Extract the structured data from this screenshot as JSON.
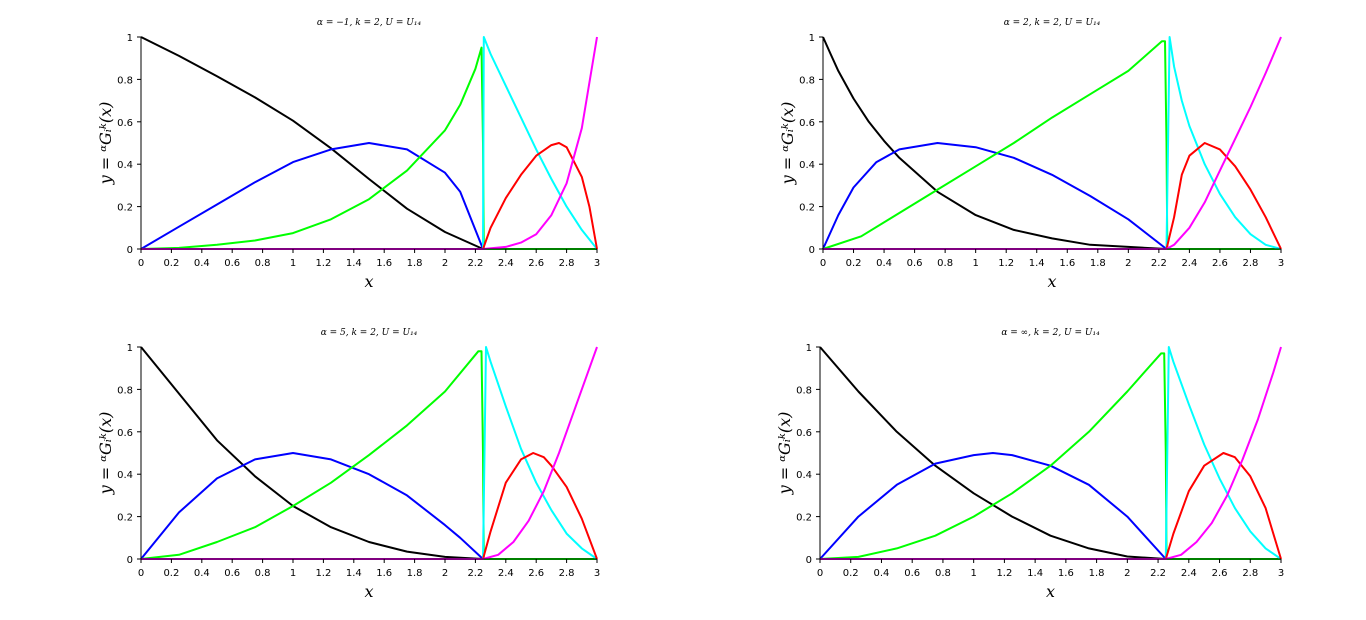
{
  "chart_data": [
    {
      "type": "line",
      "title": "α = −1, k = 2, U = U₁₄",
      "xlabel": "x",
      "ylabel": "y = ᵅGᵢᵏ(x)",
      "xlim": [
        0,
        3
      ],
      "ylim": [
        0,
        1
      ],
      "xticks": [
        "0",
        "0.2",
        "0.4",
        "0.6",
        "0.8",
        "1",
        "1.2",
        "1.4",
        "1.6",
        "1.8",
        "2",
        "2.2",
        "2.4",
        "2.6",
        "2.8",
        "3"
      ],
      "yticks": [
        "0",
        "0.2",
        "0.4",
        "0.6",
        "0.8",
        "1"
      ],
      "grid": false,
      "knots": [
        0,
        2.25,
        3
      ],
      "series": [
        {
          "color": "#000000",
          "x": [
            0,
            0.25,
            0.5,
            0.75,
            1.0,
            1.25,
            1.5,
            1.75,
            2.0,
            2.25
          ],
          "y": [
            1,
            0.911,
            0.815,
            0.715,
            0.605,
            0.475,
            0.33,
            0.19,
            0.08,
            0
          ]
        },
        {
          "color": "#0000ff",
          "x": [
            0,
            0.25,
            0.5,
            0.75,
            1.0,
            1.25,
            1.5,
            1.75,
            2.0,
            2.1,
            2.25
          ],
          "y": [
            0,
            0.105,
            0.21,
            0.315,
            0.41,
            0.47,
            0.5,
            0.47,
            0.36,
            0.27,
            0
          ]
        },
        {
          "color": "#00ff00",
          "x": [
            0,
            0.25,
            0.5,
            0.75,
            1.0,
            1.25,
            1.5,
            1.75,
            2.0,
            2.1,
            2.2,
            2.24,
            2.25,
            2.255,
            2.3,
            3.0
          ],
          "y": [
            0,
            0.005,
            0.02,
            0.04,
            0.075,
            0.14,
            0.235,
            0.37,
            0.56,
            0.68,
            0.85,
            0.95,
            0.5,
            0,
            0,
            0
          ]
        },
        {
          "color": "#00ffff",
          "x": [
            0,
            2.25,
            2.255,
            2.3,
            2.4,
            2.5,
            2.6,
            2.7,
            2.8,
            2.9,
            3.0
          ],
          "y": [
            0,
            0,
            1,
            0.92,
            0.77,
            0.62,
            0.47,
            0.33,
            0.2,
            0.09,
            0
          ]
        },
        {
          "color": "#ff0000",
          "x": [
            0,
            2.25,
            2.3,
            2.4,
            2.5,
            2.6,
            2.7,
            2.75,
            2.8,
            2.9,
            2.95,
            3.0
          ],
          "y": [
            0,
            0,
            0.1,
            0.24,
            0.35,
            0.44,
            0.49,
            0.5,
            0.48,
            0.34,
            0.2,
            0
          ]
        },
        {
          "color": "#ff00ff",
          "x": [
            0,
            2.25,
            2.4,
            2.5,
            2.6,
            2.7,
            2.8,
            2.9,
            3.0
          ],
          "y": [
            0,
            0,
            0.01,
            0.03,
            0.07,
            0.16,
            0.31,
            0.57,
            1
          ]
        }
      ]
    },
    {
      "type": "line",
      "title": "α = 2, k = 2, U = U₁₄",
      "xlabel": "x",
      "ylabel": "y = ᵅGᵢᵏ(x)",
      "xlim": [
        0,
        3
      ],
      "ylim": [
        0,
        1
      ],
      "xticks": [
        "0",
        "0.2",
        "0.4",
        "0.6",
        "0.8",
        "1",
        "1.2",
        "1.4",
        "1.6",
        "1.8",
        "2",
        "2.2",
        "2.4",
        "2.6",
        "2.8",
        "3"
      ],
      "yticks": [
        "0",
        "0.2",
        "0.4",
        "0.6",
        "0.8",
        "1"
      ],
      "grid": false,
      "knots": [
        0,
        2.25,
        3
      ],
      "series": [
        {
          "color": "#000000",
          "x": [
            0,
            0.05,
            0.1,
            0.2,
            0.3,
            0.4,
            0.5,
            0.75,
            1.0,
            1.25,
            1.5,
            1.75,
            2.0,
            2.25
          ],
          "y": [
            1,
            0.92,
            0.84,
            0.71,
            0.6,
            0.51,
            0.43,
            0.27,
            0.16,
            0.09,
            0.05,
            0.02,
            0.01,
            0
          ]
        },
        {
          "color": "#0000ff",
          "x": [
            0,
            0.1,
            0.2,
            0.35,
            0.5,
            0.75,
            1.0,
            1.25,
            1.5,
            1.75,
            2.0,
            2.25
          ],
          "y": [
            0,
            0.16,
            0.29,
            0.41,
            0.47,
            0.5,
            0.48,
            0.43,
            0.35,
            0.25,
            0.14,
            0
          ]
        },
        {
          "color": "#00ff00",
          "x": [
            0,
            0.25,
            0.5,
            0.75,
            1.0,
            1.25,
            1.5,
            1.75,
            2.0,
            2.22,
            2.24,
            2.25,
            2.255,
            3.0
          ],
          "y": [
            0,
            0.06,
            0.17,
            0.28,
            0.39,
            0.5,
            0.62,
            0.73,
            0.84,
            0.98,
            0.98,
            0.5,
            0,
            0
          ]
        },
        {
          "color": "#00ffff",
          "x": [
            0,
            2.25,
            2.27,
            2.3,
            2.35,
            2.4,
            2.5,
            2.6,
            2.7,
            2.8,
            2.9,
            3.0
          ],
          "y": [
            0,
            0,
            1,
            0.86,
            0.7,
            0.58,
            0.4,
            0.26,
            0.15,
            0.07,
            0.02,
            0
          ]
        },
        {
          "color": "#ff0000",
          "x": [
            0,
            2.25,
            2.3,
            2.35,
            2.4,
            2.5,
            2.6,
            2.7,
            2.8,
            2.9,
            3.0
          ],
          "y": [
            0,
            0,
            0.15,
            0.35,
            0.44,
            0.5,
            0.47,
            0.39,
            0.28,
            0.15,
            0
          ]
        },
        {
          "color": "#ff00ff",
          "x": [
            0,
            2.25,
            2.3,
            2.4,
            2.5,
            2.6,
            2.7,
            2.8,
            2.9,
            3.0
          ],
          "y": [
            0,
            0,
            0.02,
            0.1,
            0.22,
            0.37,
            0.52,
            0.67,
            0.83,
            1
          ]
        }
      ]
    },
    {
      "type": "line",
      "title": "α = 5, k = 2, U = U₁₄",
      "xlabel": "x",
      "ylabel": "y = ᵅGᵢᵏ(x)",
      "xlim": [
        0,
        3
      ],
      "ylim": [
        0,
        1
      ],
      "xticks": [
        "0",
        "0.2",
        "0.4",
        "0.6",
        "0.8",
        "1",
        "1.2",
        "1.4",
        "1.6",
        "1.8",
        "2",
        "2.2",
        "2.4",
        "2.6",
        "2.8",
        "3"
      ],
      "yticks": [
        "0",
        "0.2",
        "0.4",
        "0.6",
        "0.8",
        "1"
      ],
      "grid": false,
      "knots": [
        0,
        2.25,
        3
      ],
      "series": [
        {
          "color": "#000000",
          "x": [
            0,
            0.25,
            0.5,
            0.75,
            1.0,
            1.25,
            1.5,
            1.75,
            2.0,
            2.25
          ],
          "y": [
            1,
            0.78,
            0.56,
            0.39,
            0.25,
            0.15,
            0.08,
            0.035,
            0.01,
            0
          ]
        },
        {
          "color": "#0000ff",
          "x": [
            0,
            0.25,
            0.5,
            0.75,
            1.0,
            1.25,
            1.5,
            1.75,
            2.0,
            2.1,
            2.25
          ],
          "y": [
            0,
            0.22,
            0.38,
            0.47,
            0.5,
            0.47,
            0.4,
            0.3,
            0.16,
            0.1,
            0
          ]
        },
        {
          "color": "#00ff00",
          "x": [
            0,
            0.25,
            0.5,
            0.75,
            1.0,
            1.25,
            1.5,
            1.75,
            2.0,
            2.22,
            2.24,
            2.25,
            2.255,
            3.0
          ],
          "y": [
            0,
            0.02,
            0.08,
            0.15,
            0.25,
            0.36,
            0.49,
            0.63,
            0.79,
            0.98,
            0.98,
            0.5,
            0,
            0
          ]
        },
        {
          "color": "#00ffff",
          "x": [
            0,
            2.25,
            2.27,
            2.3,
            2.4,
            2.5,
            2.6,
            2.7,
            2.8,
            2.9,
            3.0
          ],
          "y": [
            0,
            0,
            1,
            0.93,
            0.72,
            0.52,
            0.36,
            0.23,
            0.12,
            0.05,
            0
          ]
        },
        {
          "color": "#ff0000",
          "x": [
            0,
            2.25,
            2.3,
            2.4,
            2.5,
            2.58,
            2.65,
            2.7,
            2.8,
            2.9,
            3.0
          ],
          "y": [
            0,
            0,
            0.13,
            0.36,
            0.47,
            0.5,
            0.48,
            0.44,
            0.34,
            0.19,
            0
          ]
        },
        {
          "color": "#ff00ff",
          "x": [
            0,
            2.25,
            2.35,
            2.45,
            2.55,
            2.65,
            2.75,
            2.85,
            2.95,
            3.0
          ],
          "y": [
            0,
            0,
            0.02,
            0.08,
            0.18,
            0.32,
            0.5,
            0.7,
            0.9,
            1
          ]
        }
      ]
    },
    {
      "type": "line",
      "title": "α = ∞, k = 2, U = U₁₄",
      "xlabel": "x",
      "ylabel": "y = ᵅGᵢᵏ(x)",
      "xlim": [
        0,
        3
      ],
      "ylim": [
        0,
        1
      ],
      "xticks": [
        "0",
        "0.2",
        "0.4",
        "0.6",
        "0.8",
        "1",
        "1.2",
        "1.4",
        "1.6",
        "1.8",
        "2",
        "2.2",
        "2.4",
        "2.6",
        "2.8",
        "3"
      ],
      "yticks": [
        "0",
        "0.2",
        "0.4",
        "0.6",
        "0.8",
        "1"
      ],
      "grid": false,
      "knots": [
        0,
        2.25,
        3
      ],
      "series": [
        {
          "color": "#000000",
          "x": [
            0,
            0.25,
            0.5,
            0.75,
            1.0,
            1.25,
            1.5,
            1.75,
            2.0,
            2.25
          ],
          "y": [
            1,
            0.79,
            0.6,
            0.44,
            0.31,
            0.2,
            0.11,
            0.05,
            0.012,
            0
          ]
        },
        {
          "color": "#0000ff",
          "x": [
            0,
            0.25,
            0.5,
            0.75,
            1.0,
            1.125,
            1.25,
            1.5,
            1.75,
            2.0,
            2.25
          ],
          "y": [
            0,
            0.2,
            0.35,
            0.45,
            0.49,
            0.5,
            0.49,
            0.44,
            0.35,
            0.2,
            0
          ]
        },
        {
          "color": "#00ff00",
          "x": [
            0,
            0.25,
            0.5,
            0.75,
            1.0,
            1.25,
            1.5,
            1.75,
            2.0,
            2.22,
            2.24,
            2.25,
            2.255,
            3.0
          ],
          "y": [
            0,
            0.01,
            0.05,
            0.11,
            0.2,
            0.31,
            0.44,
            0.6,
            0.79,
            0.97,
            0.97,
            0.5,
            0,
            0
          ]
        },
        {
          "color": "#00ffff",
          "x": [
            0,
            2.25,
            2.27,
            2.3,
            2.4,
            2.5,
            2.6,
            2.7,
            2.8,
            2.9,
            3.0
          ],
          "y": [
            0,
            0,
            1,
            0.93,
            0.73,
            0.54,
            0.38,
            0.24,
            0.13,
            0.05,
            0
          ]
        },
        {
          "color": "#ff0000",
          "x": [
            0,
            2.25,
            2.3,
            2.4,
            2.5,
            2.625,
            2.7,
            2.8,
            2.9,
            3.0
          ],
          "y": [
            0,
            0,
            0.12,
            0.32,
            0.44,
            0.5,
            0.48,
            0.39,
            0.24,
            0
          ]
        },
        {
          "color": "#ff00ff",
          "x": [
            0,
            2.25,
            2.35,
            2.45,
            2.55,
            2.65,
            2.75,
            2.85,
            2.95,
            3.0
          ],
          "y": [
            0,
            0,
            0.02,
            0.08,
            0.17,
            0.3,
            0.47,
            0.66,
            0.88,
            1
          ]
        }
      ]
    }
  ]
}
